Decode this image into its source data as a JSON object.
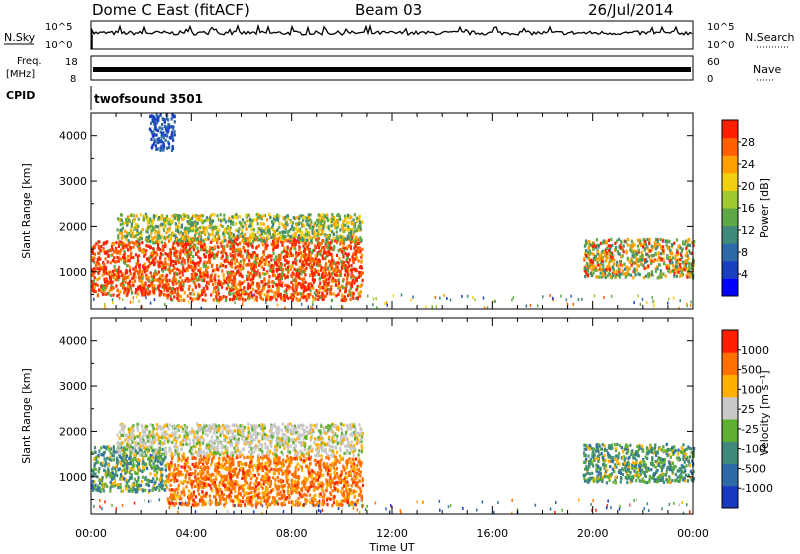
{
  "header": {
    "station": "Dome C East (fitACF)",
    "beam": "Beam 03",
    "date": "26/Jul/2014"
  },
  "status_panels": {
    "nsky_label": "N.Sky",
    "nsky_ticks": [
      "10^5",
      "10^0"
    ],
    "nsearch_label": "N.Search",
    "nsearch_ticks": [
      "10^5",
      "10^0"
    ],
    "freq_label_1": "Freq.",
    "freq_label_2": "[MHz]",
    "freq_ticks": [
      "18",
      "8"
    ],
    "nave_label": "Nave",
    "nave_ticks": [
      "60",
      "0"
    ],
    "cpid_label": "CPID",
    "cpid_value": "twofsound 3501"
  },
  "chart_data": [
    {
      "type": "heatmap",
      "name": "power",
      "xlabel": "",
      "ylabel": "Slant Range [km]",
      "xlim": [
        "00:00",
        "00:00"
      ],
      "ylim": [
        180,
        4500
      ],
      "yticks": [
        "4000",
        "3000",
        "2000",
        "1000"
      ],
      "colorbar": {
        "label": "Power [dB]",
        "ticks": [
          "28",
          "24",
          "20",
          "16",
          "12",
          "8",
          "4"
        ],
        "colors": [
          "#0000ff",
          "#1a40c0",
          "#2f6aa8",
          "#3f8a7a",
          "#5fa848",
          "#a0c830",
          "#f0d010",
          "#ffa000",
          "#ff6000",
          "#ff2000"
        ]
      },
      "regions": [
        {
          "t_start": 0.0,
          "t_end": 3.0,
          "range_start": 500,
          "range_end": 1700,
          "dominant": "red-orange"
        },
        {
          "t_start": 3.0,
          "t_end": 10.8,
          "range_start": 400,
          "range_end": 1800,
          "dominant": "red-orange"
        },
        {
          "t_start": 1.0,
          "t_end": 10.8,
          "range_start": 1700,
          "range_end": 2300,
          "dominant": "green-orange"
        },
        {
          "t_start": 2.3,
          "t_end": 3.3,
          "range_start": 3700,
          "range_end": 4500,
          "dominant": "blue"
        },
        {
          "t_start": 19.6,
          "t_end": 24.0,
          "range_start": 900,
          "range_end": 1750,
          "dominant": "orange-green"
        }
      ]
    },
    {
      "type": "heatmap",
      "name": "velocity",
      "xlabel": "Time UT",
      "ylabel": "Slant Range [km]",
      "xticks": [
        "00:00",
        "04:00",
        "08:00",
        "12:00",
        "16:00",
        "20:00",
        "00:00"
      ],
      "ylim": [
        180,
        4500
      ],
      "yticks": [
        "4000",
        "3000",
        "2000",
        "1000"
      ],
      "colorbar": {
        "label": "Velocity [m s⁻¹]",
        "ticks": [
          "1000",
          "500",
          "100",
          "25",
          "-25",
          "-100",
          "-500",
          "-1000"
        ],
        "colors": [
          "#1838c0",
          "#2f6aa8",
          "#3f8a7a",
          "#5fb030",
          "#c8c8c8",
          "#ffb000",
          "#ff7000",
          "#ff2000"
        ]
      },
      "regions": [
        {
          "t_start": 0.0,
          "t_end": 3.0,
          "range_start": 700,
          "range_end": 1700,
          "dominant": "green"
        },
        {
          "t_start": 3.0,
          "t_end": 10.8,
          "range_start": 400,
          "range_end": 1500,
          "dominant": "orange"
        },
        {
          "t_start": 1.0,
          "t_end": 10.8,
          "range_start": 1500,
          "range_end": 2200,
          "dominant": "grey"
        },
        {
          "t_start": 19.6,
          "t_end": 24.0,
          "range_start": 900,
          "range_end": 1750,
          "dominant": "green"
        }
      ]
    }
  ]
}
